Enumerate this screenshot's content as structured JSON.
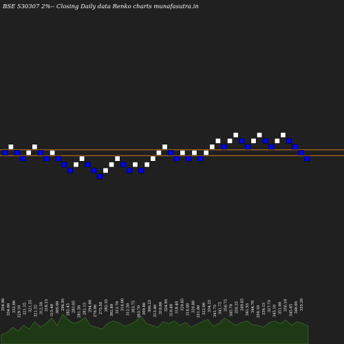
{
  "title": "BSE 530307 2%-- Closing Daily data Renko charts munafasutra.in",
  "colors": {
    "background": "#202020",
    "up_brick": "#ffffff",
    "down_brick": "#0000ff",
    "level_line": "#cc7a22",
    "volume_fill": "#1e3a14",
    "volume_line": "#3c6a2a"
  },
  "chart_data": {
    "type": "renko",
    "brick_size_pct": 2,
    "bricks": [
      {
        "dir": "down",
        "level": 0
      },
      {
        "dir": "up",
        "level": 1
      },
      {
        "dir": "down",
        "level": 0
      },
      {
        "dir": "down",
        "level": -1
      },
      {
        "dir": "up",
        "level": 0
      },
      {
        "dir": "up",
        "level": 1
      },
      {
        "dir": "down",
        "level": 0
      },
      {
        "dir": "down",
        "level": -1
      },
      {
        "dir": "up",
        "level": 0
      },
      {
        "dir": "down",
        "level": -1
      },
      {
        "dir": "down",
        "level": -2
      },
      {
        "dir": "down",
        "level": -3
      },
      {
        "dir": "up",
        "level": -2
      },
      {
        "dir": "up",
        "level": -1
      },
      {
        "dir": "down",
        "level": -2
      },
      {
        "dir": "down",
        "level": -3
      },
      {
        "dir": "down",
        "level": -4
      },
      {
        "dir": "up",
        "level": -3
      },
      {
        "dir": "up",
        "level": -2
      },
      {
        "dir": "up",
        "level": -1
      },
      {
        "dir": "down",
        "level": -2
      },
      {
        "dir": "down",
        "level": -3
      },
      {
        "dir": "up",
        "level": -2
      },
      {
        "dir": "down",
        "level": -3
      },
      {
        "dir": "up",
        "level": -2
      },
      {
        "dir": "up",
        "level": -1
      },
      {
        "dir": "up",
        "level": 0
      },
      {
        "dir": "up",
        "level": 1
      },
      {
        "dir": "down",
        "level": 0
      },
      {
        "dir": "down",
        "level": -1
      },
      {
        "dir": "up",
        "level": 0
      },
      {
        "dir": "down",
        "level": -1
      },
      {
        "dir": "up",
        "level": 0
      },
      {
        "dir": "down",
        "level": -1
      },
      {
        "dir": "up",
        "level": 0
      },
      {
        "dir": "up",
        "level": 1
      },
      {
        "dir": "up",
        "level": 2
      },
      {
        "dir": "down",
        "level": 1
      },
      {
        "dir": "up",
        "level": 2
      },
      {
        "dir": "up",
        "level": 3
      },
      {
        "dir": "down",
        "level": 2
      },
      {
        "dir": "down",
        "level": 1
      },
      {
        "dir": "up",
        "level": 2
      },
      {
        "dir": "up",
        "level": 3
      },
      {
        "dir": "down",
        "level": 2
      },
      {
        "dir": "down",
        "level": 1
      },
      {
        "dir": "up",
        "level": 2
      },
      {
        "dir": "up",
        "level": 3
      },
      {
        "dir": "down",
        "level": 2
      },
      {
        "dir": "down",
        "level": 1
      },
      {
        "dir": "down",
        "level": 0
      },
      {
        "dir": "down",
        "level": -1
      }
    ],
    "level_lines": [
      0.5,
      -0.5
    ],
    "volume_labels": [
      "354.90",
      "334.00",
      "332.00",
      "329.10",
      "321.35",
      "321.35",
      "321.35",
      "312.50",
      "318.15",
      "315.40",
      "305.00",
      "296.95",
      "282.45",
      "283.05",
      "281.50",
      "281.15",
      "294.00",
      "276.90",
      "275.50",
      "282.35",
      "302.80",
      "312.70",
      "316.00",
      "312.50",
      "303.75",
      "303.70",
      "309.80",
      "306.25",
      "313.40",
      "319.00",
      "324.95",
      "316.40",
      "318.40",
      "320.85",
      "316.00",
      "326.80",
      "331.00",
      "322.00",
      "334.25",
      "341.75",
      "341.75",
      "356.75",
      "345.70",
      "350.35",
      "349.65",
      "341.55",
      "344.70",
      "350.10",
      "336.15",
      "327.75",
      "345.10",
      "351.00",
      "356.10",
      "345.65",
      "340.05",
      "335.20"
    ],
    "volumes": [
      0.25,
      0.3,
      0.45,
      0.35,
      0.5,
      0.4,
      0.6,
      0.45,
      0.55,
      0.7,
      0.5,
      0.8,
      0.65,
      0.55,
      0.6,
      0.72,
      0.5,
      0.45,
      0.4,
      0.55,
      0.62,
      0.58,
      0.48,
      0.52,
      0.6,
      0.75,
      0.55,
      0.5,
      0.45,
      0.6,
      0.55,
      0.62,
      0.5,
      0.58,
      0.45,
      0.52,
      0.6,
      0.66,
      0.48,
      0.55,
      0.7,
      0.6,
      0.5,
      0.58,
      0.62,
      0.52,
      0.5,
      0.45,
      0.58,
      0.62,
      0.55,
      0.65,
      0.5,
      0.6,
      0.55,
      0.48
    ]
  }
}
